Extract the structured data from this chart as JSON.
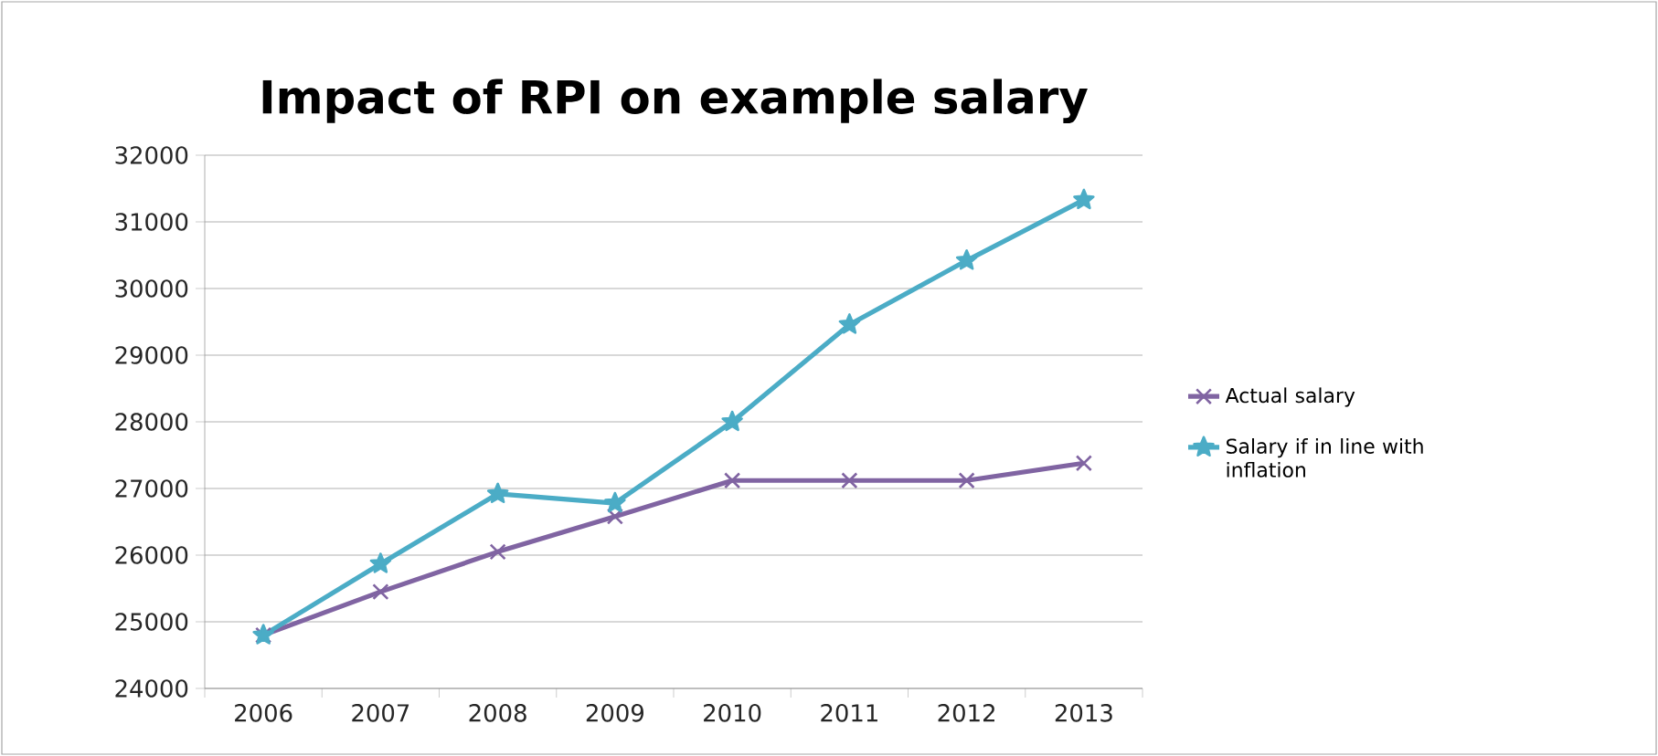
{
  "chart_data": {
    "type": "line",
    "title": "Impact of RPI on example salary",
    "categories": [
      "2006",
      "2007",
      "2008",
      "2009",
      "2010",
      "2011",
      "2012",
      "2013"
    ],
    "series": [
      {
        "name": "Actual salary",
        "color": "#8064a2",
        "marker": "cross",
        "values": [
          24800,
          25450,
          26050,
          26580,
          27120,
          27120,
          27120,
          27380
        ]
      },
      {
        "name": "Salary if in line with inflation",
        "color": "#4bacc6",
        "marker": "star",
        "values": [
          24800,
          25870,
          26920,
          26780,
          28000,
          29460,
          30420,
          31330
        ]
      }
    ],
    "ylim": [
      24000,
      32000
    ],
    "yticks": [
      24000,
      25000,
      26000,
      27000,
      28000,
      29000,
      30000,
      31000,
      32000
    ],
    "grid": "y",
    "legend": "right",
    "line_style": "solid"
  }
}
